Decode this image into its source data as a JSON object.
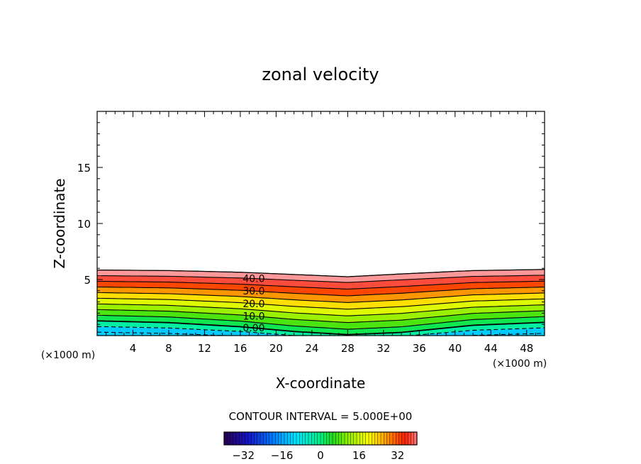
{
  "chart_data": {
    "type": "contour",
    "title": "zonal velocity",
    "xlabel": "X-coordinate",
    "ylabel": "Z-coordinate",
    "x_unit_left": "(×1000 m)",
    "x_unit_right": "(×1000 m)",
    "xlim": [
      0,
      50
    ],
    "ylim": [
      0,
      20
    ],
    "x_ticks": [
      4,
      8,
      12,
      16,
      20,
      24,
      28,
      32,
      36,
      40,
      44,
      48
    ],
    "y_ticks": [
      5,
      10,
      15
    ],
    "contour_labels": [
      "40.0",
      "30.0",
      "20.0",
      "10.0",
      "0.00"
    ],
    "contour_label_x": 17.5,
    "contour_interval_text": "CONTOUR INTERVAL = 5.000E+00",
    "colorbar": {
      "range": [
        -40,
        40
      ],
      "ticks": [
        -32,
        -16,
        0,
        16,
        32
      ],
      "tick_labels": [
        "−32",
        "−16",
        "0",
        "16",
        "32"
      ]
    },
    "profile": {
      "x": [
        0,
        8,
        16,
        22,
        28,
        34,
        42,
        50
      ],
      "top": [
        5.85,
        5.8,
        5.65,
        5.45,
        5.25,
        5.5,
        5.8,
        5.9
      ],
      "dip": [
        0.0,
        0.15,
        0.5,
        0.9,
        1.15,
        1.0,
        0.4,
        0.15
      ]
    },
    "levels": [
      45,
      40,
      35,
      30,
      25,
      20,
      15,
      10,
      5,
      0,
      -5,
      -10
    ]
  }
}
